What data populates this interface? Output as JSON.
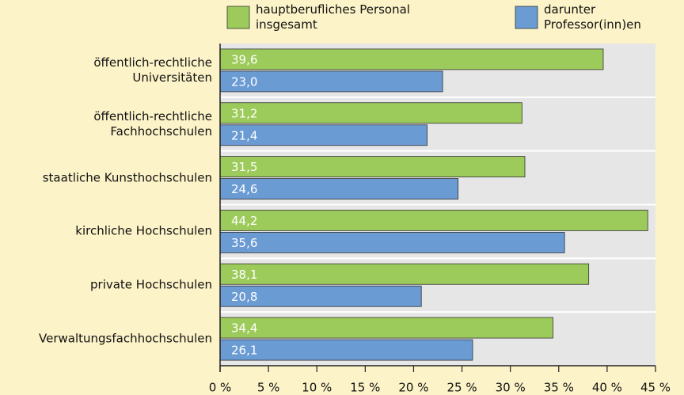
{
  "chart_data": {
    "type": "bar",
    "orientation": "horizontal",
    "categories": [
      "öffentlich-rechtliche\nUniversitäten",
      "öffentlich-rechtliche\nFachhochschulen",
      "staatliche Kunsthochschulen",
      "kirchliche Hochschulen",
      "private Hochschulen",
      "Verwaltungsfachhochschulen"
    ],
    "series": [
      {
        "name": "hauptberufliches Personal\ninsgesamt",
        "color": "#9dcb5b",
        "values": [
          39.6,
          31.2,
          31.5,
          44.2,
          38.1,
          34.4
        ],
        "value_labels": [
          "39,6",
          "31,2",
          "31,5",
          "44,2",
          "38,1",
          "34,4"
        ]
      },
      {
        "name": "darunter\nProfessor(inn)en",
        "color": "#6a9bd3",
        "values": [
          23.0,
          21.4,
          24.6,
          35.6,
          20.8,
          26.1
        ],
        "value_labels": [
          "23,0",
          "21,4",
          "24,6",
          "35,6",
          "20,8",
          "26,1"
        ]
      }
    ],
    "xlim": [
      0,
      45
    ],
    "xticks": [
      {
        "value": 0,
        "label": "0 %"
      },
      {
        "value": 5,
        "label": "5 %"
      },
      {
        "value": 10,
        "label": "10 %"
      },
      {
        "value": 15,
        "label": "15 %"
      },
      {
        "value": 20,
        "label": "20 %"
      },
      {
        "value": 25,
        "label": "25 %"
      },
      {
        "value": 30,
        "label": "30 %"
      },
      {
        "value": 35,
        "label": "35 %"
      },
      {
        "value": 40,
        "label": "40 %"
      },
      {
        "value": 45,
        "label": "45 %"
      }
    ],
    "legend": "top"
  }
}
